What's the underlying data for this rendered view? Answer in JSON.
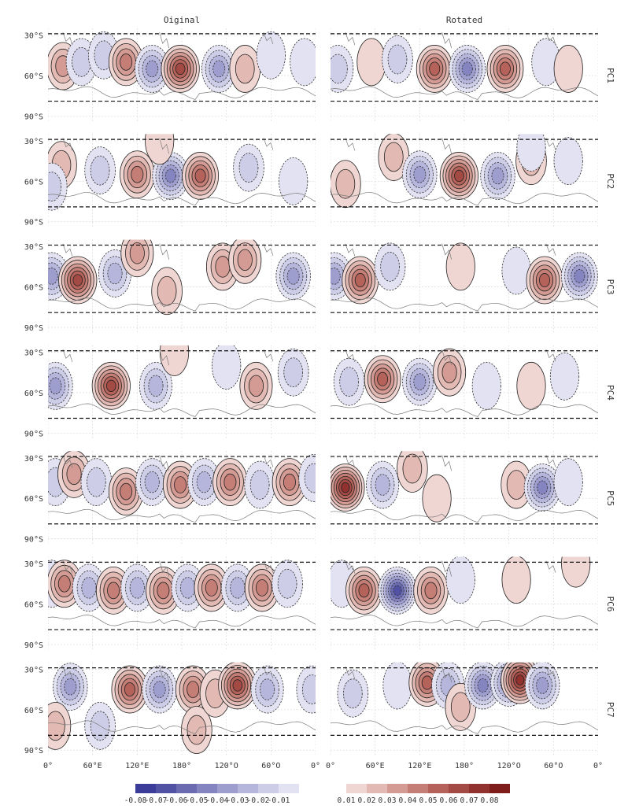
{
  "chart_data": {
    "type": "heatmap",
    "title": "",
    "columns": [
      "Oiginal",
      "Rotated"
    ],
    "rows": [
      "PC1",
      "PC2",
      "PC3",
      "PC4",
      "PC5",
      "PC6",
      "PC7"
    ],
    "x_ticks": [
      "0°",
      "60°E",
      "120°E",
      "180°",
      "120°O",
      "60°O",
      "0°"
    ],
    "y_ticks": [
      "30°S",
      "60°S",
      "90°S"
    ],
    "lon_range": [
      0,
      360
    ],
    "lat_range": [
      -95,
      -25
    ],
    "dashed_box_lats": [
      -29,
      -79
    ],
    "grid": true,
    "legend_position": "bottom",
    "negative_levels": [
      "-0.08",
      "-0.07",
      "-0.06",
      "-0.05",
      "-0.04",
      "-0.03",
      "-0.02",
      "-0.01"
    ],
    "positive_levels": [
      "0.01",
      "0.02",
      "0.03",
      "0.04",
      "0.05",
      "0.06",
      "0.07",
      "0.08"
    ],
    "negative_colors": [
      "#3b3b9a",
      "#5252a4",
      "#6b6bb2",
      "#8484c0",
      "#9d9dce",
      "#b6b6dc",
      "#cdcde8",
      "#e2e2f2"
    ],
    "positive_colors": [
      "#f0d6d3",
      "#e2b9b3",
      "#d39b93",
      "#c47e75",
      "#b5625a",
      "#a34a44",
      "#92322f",
      "#7f1d1b"
    ],
    "panels": [
      {
        "row": "PC1",
        "column": "Oiginal",
        "anomalies": [
          {
            "lon": 20,
            "lat": -53,
            "value": 0.03
          },
          {
            "lon": 45,
            "lat": -50,
            "value": -0.02
          },
          {
            "lon": 75,
            "lat": -45,
            "value": -0.02
          },
          {
            "lon": 105,
            "lat": -50,
            "value": 0.035
          },
          {
            "lon": 140,
            "lat": -55,
            "value": -0.04
          },
          {
            "lon": 178,
            "lat": -55,
            "value": 0.06
          },
          {
            "lon": 230,
            "lat": -55,
            "value": -0.035
          },
          {
            "lon": 265,
            "lat": -55,
            "value": 0.02
          },
          {
            "lon": 300,
            "lat": -45,
            "value": -0.01
          },
          {
            "lon": 345,
            "lat": -50,
            "value": -0.01
          }
        ]
      },
      {
        "row": "PC1",
        "column": "Rotated",
        "anomalies": [
          {
            "lon": 10,
            "lat": -55,
            "value": -0.015
          },
          {
            "lon": 55,
            "lat": -50,
            "value": 0.01
          },
          {
            "lon": 90,
            "lat": -48,
            "value": -0.015
          },
          {
            "lon": 140,
            "lat": -55,
            "value": 0.05
          },
          {
            "lon": 184,
            "lat": -55,
            "value": -0.05
          },
          {
            "lon": 235,
            "lat": -55,
            "value": 0.05
          },
          {
            "lon": 290,
            "lat": -50,
            "value": -0.01
          },
          {
            "lon": 320,
            "lat": -55,
            "value": 0.01
          }
        ]
      },
      {
        "row": "PC2",
        "column": "Oiginal",
        "anomalies": [
          {
            "lon": 18,
            "lat": -48,
            "value": 0.015
          },
          {
            "lon": 5,
            "lat": -64,
            "value": -0.015
          },
          {
            "lon": 70,
            "lat": -52,
            "value": -0.02
          },
          {
            "lon": 120,
            "lat": -55,
            "value": 0.04
          },
          {
            "lon": 165,
            "lat": -56,
            "value": -0.05
          },
          {
            "lon": 205,
            "lat": -56,
            "value": 0.05
          },
          {
            "lon": 270,
            "lat": -50,
            "value": -0.015
          },
          {
            "lon": 330,
            "lat": -60,
            "value": -0.01
          },
          {
            "lon": 150,
            "lat": -30,
            "value": 0.01
          }
        ]
      },
      {
        "row": "PC2",
        "column": "Rotated",
        "anomalies": [
          {
            "lon": 20,
            "lat": -62,
            "value": 0.015
          },
          {
            "lon": 85,
            "lat": -42,
            "value": 0.015
          },
          {
            "lon": 120,
            "lat": -55,
            "value": -0.035
          },
          {
            "lon": 173,
            "lat": -56,
            "value": 0.055
          },
          {
            "lon": 225,
            "lat": -56,
            "value": -0.04
          },
          {
            "lon": 270,
            "lat": -45,
            "value": 0.015
          },
          {
            "lon": 320,
            "lat": -45,
            "value": -0.01
          },
          {
            "lon": 270,
            "lat": -35,
            "value": -0.01
          }
        ]
      },
      {
        "row": "PC3",
        "column": "Oiginal",
        "anomalies": [
          {
            "lon": 5,
            "lat": -52,
            "value": -0.035
          },
          {
            "lon": 40,
            "lat": -55,
            "value": 0.06
          },
          {
            "lon": 90,
            "lat": -50,
            "value": -0.03
          },
          {
            "lon": 120,
            "lat": -35,
            "value": 0.025
          },
          {
            "lon": 160,
            "lat": -63,
            "value": 0.015
          },
          {
            "lon": 235,
            "lat": -45,
            "value": 0.03
          },
          {
            "lon": 265,
            "lat": -40,
            "value": 0.025
          },
          {
            "lon": 330,
            "lat": -52,
            "value": -0.035
          }
        ]
      },
      {
        "row": "PC3",
        "column": "Rotated",
        "anomalies": [
          {
            "lon": 5,
            "lat": -52,
            "value": -0.04
          },
          {
            "lon": 40,
            "lat": -55,
            "value": 0.045
          },
          {
            "lon": 80,
            "lat": -45,
            "value": -0.02
          },
          {
            "lon": 175,
            "lat": -45,
            "value": 0.01
          },
          {
            "lon": 250,
            "lat": -48,
            "value": -0.01
          },
          {
            "lon": 288,
            "lat": -55,
            "value": 0.045
          },
          {
            "lon": 335,
            "lat": -52,
            "value": -0.045
          }
        ]
      },
      {
        "row": "PC4",
        "column": "Oiginal",
        "anomalies": [
          {
            "lon": 10,
            "lat": -55,
            "value": -0.04
          },
          {
            "lon": 85,
            "lat": -55,
            "value": 0.055
          },
          {
            "lon": 145,
            "lat": -55,
            "value": -0.03
          },
          {
            "lon": 170,
            "lat": -30,
            "value": 0.01
          },
          {
            "lon": 240,
            "lat": -40,
            "value": -0.01
          },
          {
            "lon": 280,
            "lat": -55,
            "value": 0.03
          },
          {
            "lon": 330,
            "lat": -45,
            "value": -0.02
          }
        ]
      },
      {
        "row": "PC4",
        "column": "Rotated",
        "anomalies": [
          {
            "lon": 25,
            "lat": -52,
            "value": -0.02
          },
          {
            "lon": 70,
            "lat": -50,
            "value": 0.05
          },
          {
            "lon": 120,
            "lat": -52,
            "value": -0.04
          },
          {
            "lon": 160,
            "lat": -45,
            "value": 0.025
          },
          {
            "lon": 210,
            "lat": -55,
            "value": -0.01
          },
          {
            "lon": 270,
            "lat": -55,
            "value": 0.005
          },
          {
            "lon": 315,
            "lat": -48,
            "value": -0.005
          }
        ]
      },
      {
        "row": "PC5",
        "column": "Oiginal",
        "anomalies": [
          {
            "lon": 10,
            "lat": -48,
            "value": -0.02
          },
          {
            "lon": 35,
            "lat": -42,
            "value": 0.03
          },
          {
            "lon": 65,
            "lat": -48,
            "value": -0.02
          },
          {
            "lon": 105,
            "lat": -55,
            "value": 0.035
          },
          {
            "lon": 140,
            "lat": -48,
            "value": -0.025
          },
          {
            "lon": 178,
            "lat": -50,
            "value": 0.035
          },
          {
            "lon": 210,
            "lat": -48,
            "value": -0.025
          },
          {
            "lon": 245,
            "lat": -48,
            "value": 0.035
          },
          {
            "lon": 285,
            "lat": -50,
            "value": -0.02
          },
          {
            "lon": 325,
            "lat": -48,
            "value": 0.035
          },
          {
            "lon": 358,
            "lat": -45,
            "value": -0.015
          }
        ]
      },
      {
        "row": "PC5",
        "column": "Rotated",
        "anomalies": [
          {
            "lon": 20,
            "lat": -52,
            "value": 0.065
          },
          {
            "lon": 70,
            "lat": -50,
            "value": -0.03
          },
          {
            "lon": 110,
            "lat": -38,
            "value": 0.015
          },
          {
            "lon": 143,
            "lat": -60,
            "value": 0.01
          },
          {
            "lon": 250,
            "lat": -50,
            "value": 0.02
          },
          {
            "lon": 285,
            "lat": -52,
            "value": -0.045
          },
          {
            "lon": 320,
            "lat": -48,
            "value": -0.01
          }
        ]
      },
      {
        "row": "PC6",
        "column": "Oiginal",
        "anomalies": [
          {
            "lon": 5,
            "lat": -45,
            "value": -0.01
          },
          {
            "lon": 22,
            "lat": -45,
            "value": 0.035
          },
          {
            "lon": 55,
            "lat": -48,
            "value": -0.03
          },
          {
            "lon": 88,
            "lat": -50,
            "value": 0.04
          },
          {
            "lon": 120,
            "lat": -48,
            "value": -0.03
          },
          {
            "lon": 155,
            "lat": -50,
            "value": 0.035
          },
          {
            "lon": 188,
            "lat": -48,
            "value": -0.03
          },
          {
            "lon": 220,
            "lat": -48,
            "value": 0.035
          },
          {
            "lon": 255,
            "lat": -48,
            "value": -0.03
          },
          {
            "lon": 288,
            "lat": -48,
            "value": 0.035
          },
          {
            "lon": 322,
            "lat": -45,
            "value": -0.02
          }
        ]
      },
      {
        "row": "PC6",
        "column": "Rotated",
        "anomalies": [
          {
            "lon": 15,
            "lat": -45,
            "value": -0.01
          },
          {
            "lon": 45,
            "lat": -50,
            "value": 0.045
          },
          {
            "lon": 90,
            "lat": -50,
            "value": -0.065
          },
          {
            "lon": 135,
            "lat": -50,
            "value": 0.04
          },
          {
            "lon": 175,
            "lat": -42,
            "value": -0.01
          },
          {
            "lon": 250,
            "lat": -42,
            "value": 0.01
          },
          {
            "lon": 330,
            "lat": -30,
            "value": 0.01
          }
        ]
      },
      {
        "row": "PC7",
        "column": "Oiginal",
        "anomalies": [
          {
            "lon": 30,
            "lat": -43,
            "value": -0.035
          },
          {
            "lon": 70,
            "lat": -72,
            "value": -0.015
          },
          {
            "lon": 10,
            "lat": -72,
            "value": 0.015
          },
          {
            "lon": 110,
            "lat": -45,
            "value": 0.045
          },
          {
            "lon": 150,
            "lat": -45,
            "value": -0.04
          },
          {
            "lon": 195,
            "lat": -45,
            "value": 0.035
          },
          {
            "lon": 200,
            "lat": -75,
            "value": 0.015
          },
          {
            "lon": 225,
            "lat": -48,
            "value": 0.015
          },
          {
            "lon": 255,
            "lat": -42,
            "value": 0.055
          },
          {
            "lon": 295,
            "lat": -45,
            "value": -0.03
          },
          {
            "lon": 355,
            "lat": -45,
            "value": -0.015
          }
        ]
      },
      {
        "row": "PC7",
        "column": "Rotated",
        "anomalies": [
          {
            "lon": 30,
            "lat": -48,
            "value": -0.015
          },
          {
            "lon": 90,
            "lat": -42,
            "value": -0.01
          },
          {
            "lon": 130,
            "lat": -40,
            "value": 0.045
          },
          {
            "lon": 158,
            "lat": -42,
            "value": -0.03
          },
          {
            "lon": 175,
            "lat": -58,
            "value": 0.015
          },
          {
            "lon": 205,
            "lat": -42,
            "value": -0.045
          },
          {
            "lon": 240,
            "lat": -40,
            "value": -0.045
          },
          {
            "lon": 255,
            "lat": -38,
            "value": 0.07
          },
          {
            "lon": 285,
            "lat": -42,
            "value": -0.04
          }
        ]
      }
    ]
  }
}
